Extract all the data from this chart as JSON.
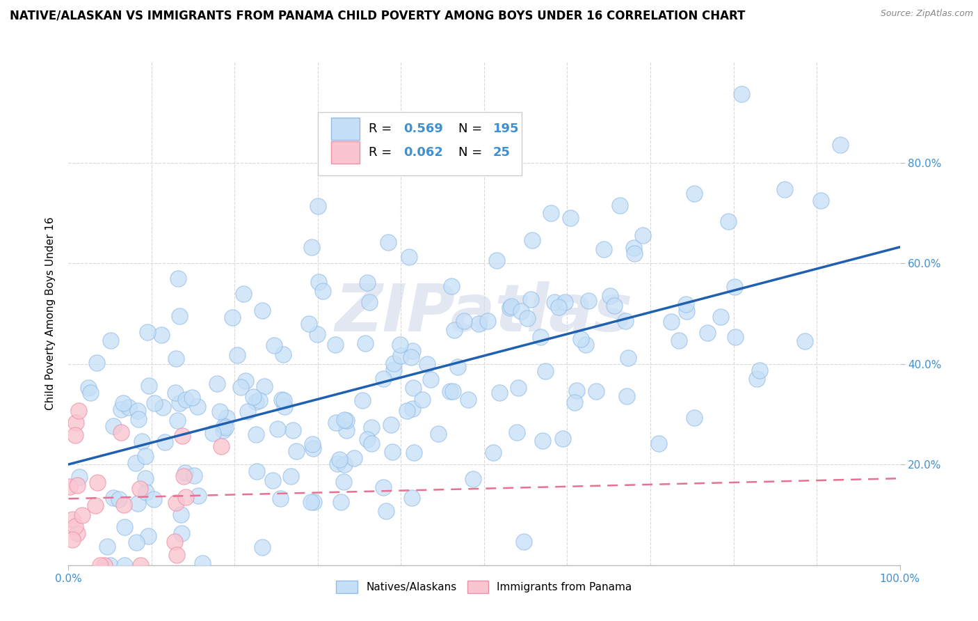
{
  "title": "NATIVE/ALASKAN VS IMMIGRANTS FROM PANAMA CHILD POVERTY AMONG BOYS UNDER 16 CORRELATION CHART",
  "source": "Source: ZipAtlas.com",
  "ylabel": "Child Poverty Among Boys Under 16",
  "native_R": 0.569,
  "native_N": 195,
  "panama_R": 0.062,
  "panama_N": 25,
  "native_fill": "#c5dff7",
  "native_edge": "#90bce8",
  "panama_fill": "#f9c5d0",
  "panama_edge": "#f090a8",
  "native_line_color": "#2060b0",
  "panama_line_color": "#e87090",
  "background_color": "#ffffff",
  "grid_color": "#d8d8d8",
  "watermark_color": "#d0d8e8",
  "xlim": [
    0.0,
    1.0
  ],
  "ylim": [
    0.0,
    1.0
  ],
  "tick_color": "#4090d0",
  "title_fontsize": 12,
  "axis_label_fontsize": 11,
  "tick_fontsize": 11
}
